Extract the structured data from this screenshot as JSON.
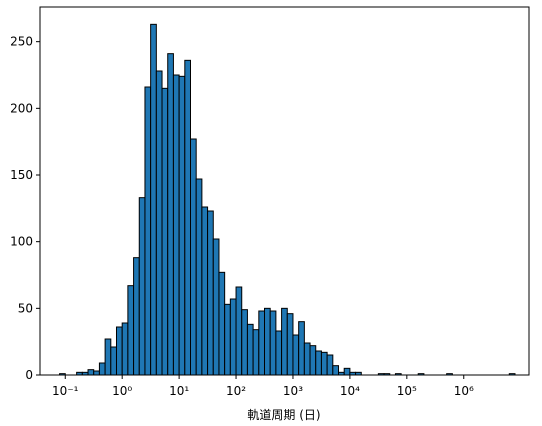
{
  "chart_data": {
    "type": "histogram",
    "xlabel": "軌道周期 (日)",
    "color": "#1f77b4",
    "edgecolor": "#000000",
    "xscale": "log",
    "bins": [
      0.07943,
      0.1,
      0.1259,
      0.1585,
      0.1995,
      0.2512,
      0.3162,
      0.3981,
      0.5012,
      0.631,
      0.7943,
      1,
      1.259,
      1.585,
      1.995,
      2.512,
      3.162,
      3.981,
      5.012,
      6.31,
      7.943,
      10,
      12.59,
      15.85,
      19.95,
      25.12,
      31.62,
      39.81,
      50.12,
      63.1,
      79.43,
      100,
      125.9,
      158.5,
      199.5,
      251.2,
      316.2,
      398.1,
      501.2,
      631,
      794.3,
      1000,
      1259,
      1585,
      1995,
      2512,
      3162,
      3981,
      5012,
      6310,
      7943,
      10000,
      12590,
      15850,
      19950,
      25120,
      31620,
      39810,
      50120,
      63100,
      79430,
      100000,
      125900,
      158500,
      199500,
      251200,
      316200,
      398100,
      501200,
      631000,
      794300,
      1000000,
      1259000,
      1585000,
      1995000,
      2512000,
      3162000,
      3981000,
      5012000,
      6310000,
      7943000
    ],
    "counts": [
      1,
      0,
      0,
      2,
      2,
      4,
      3,
      9,
      27,
      21,
      36,
      39,
      67,
      88,
      133,
      216,
      263,
      228,
      215,
      241,
      225,
      224,
      236,
      177,
      147,
      126,
      123,
      102,
      77,
      53,
      57,
      66,
      49,
      38,
      34,
      48,
      50,
      48,
      33,
      50,
      46,
      30,
      40,
      24,
      22,
      18,
      17,
      15,
      7,
      2,
      5,
      2,
      2,
      0,
      0,
      0,
      1,
      1,
      0,
      1,
      0,
      0,
      0,
      1,
      0,
      0,
      0,
      0,
      1,
      0,
      0,
      0,
      0,
      0,
      0,
      0,
      0,
      0,
      0,
      1
    ],
    "xlim": [
      0.036,
      14000000
    ],
    "xticks": [
      {
        "value": 0.1,
        "label": "10⁻¹"
      },
      {
        "value": 1,
        "label": "10⁰"
      },
      {
        "value": 10,
        "label": "10¹"
      },
      {
        "value": 100,
        "label": "10²"
      },
      {
        "value": 1000,
        "label": "10³"
      },
      {
        "value": 10000,
        "label": "10⁴"
      },
      {
        "value": 100000,
        "label": "10⁵"
      },
      {
        "value": 1000000,
        "label": "10⁶"
      }
    ],
    "ylim": [
      0,
      276
    ],
    "yticks": [
      0,
      50,
      100,
      150,
      200,
      250
    ]
  }
}
